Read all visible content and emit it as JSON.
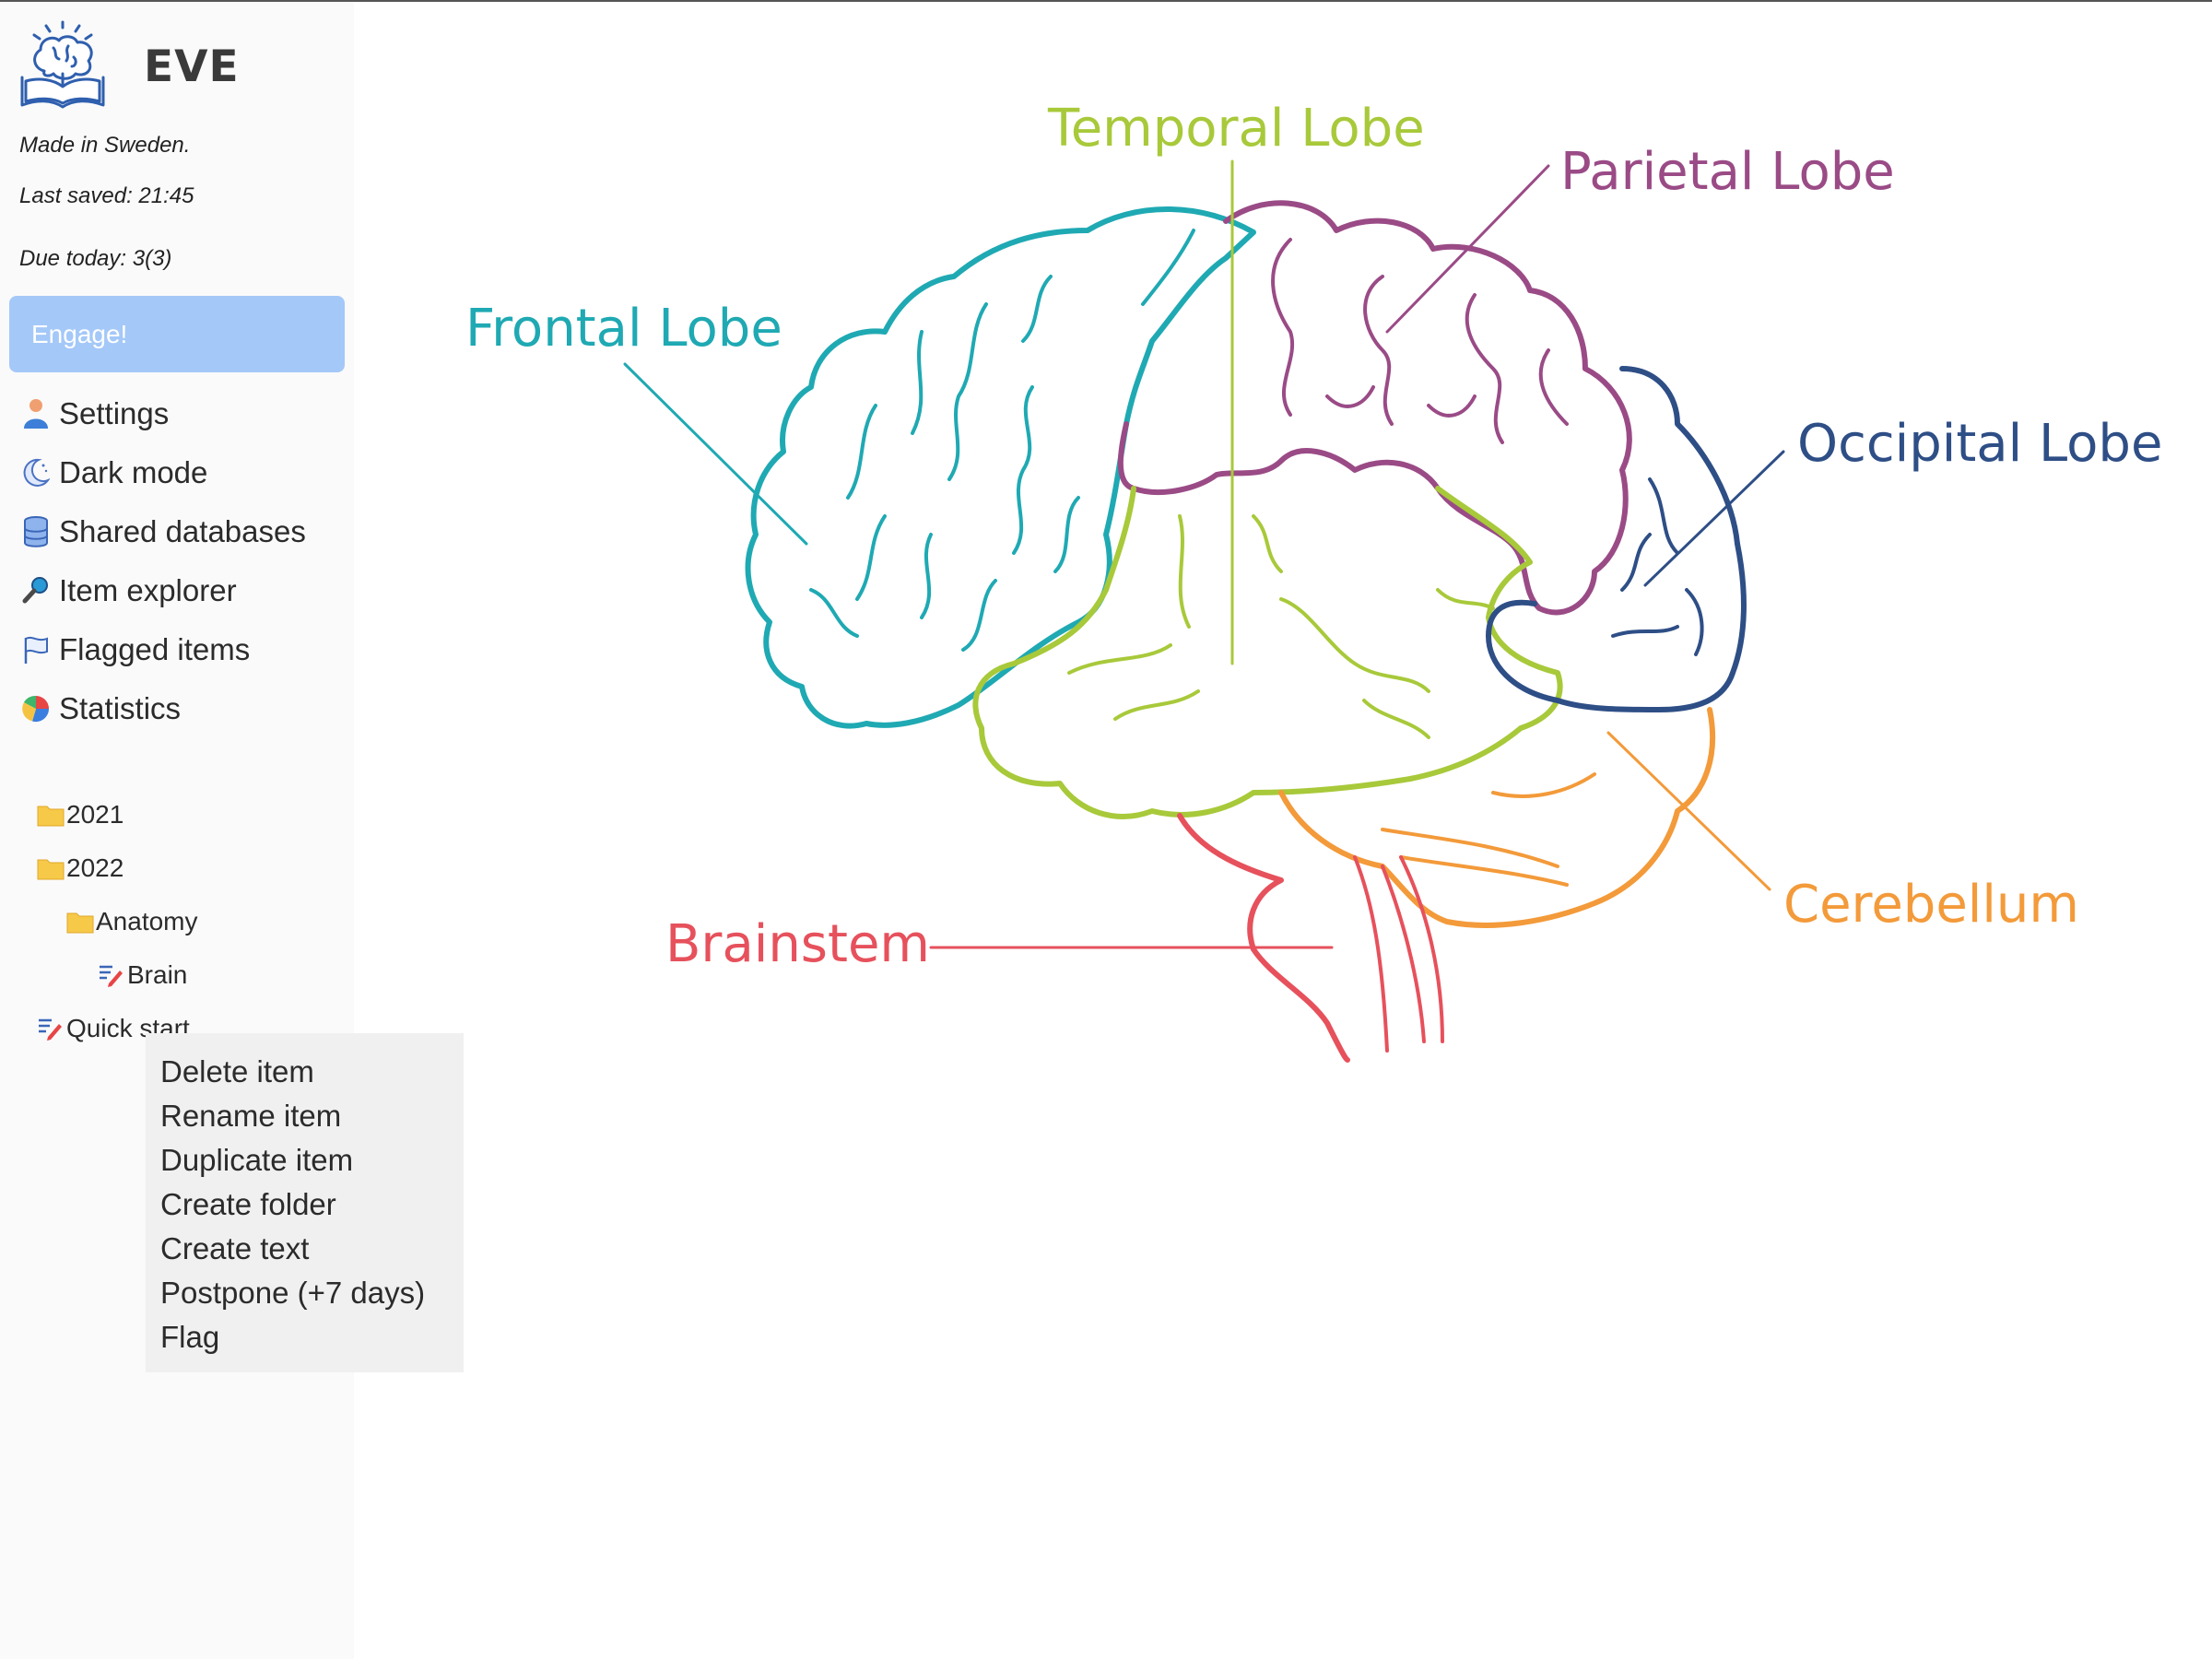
{
  "app": {
    "title": "EVE",
    "made_in": "Made in Sweden.",
    "last_saved": "Last saved: 21:45",
    "due_today": "Due today: 3(3)"
  },
  "engage_button": {
    "label": "Engage!"
  },
  "menu": [
    {
      "label": "Settings",
      "icon": "person-icon"
    },
    {
      "label": "Dark mode",
      "icon": "moon-icon"
    },
    {
      "label": "Shared databases",
      "icon": "database-icon"
    },
    {
      "label": "Item explorer",
      "icon": "magnifier-icon"
    },
    {
      "label": "Flagged items",
      "icon": "flag-icon"
    },
    {
      "label": "Statistics",
      "icon": "pie-chart-icon"
    }
  ],
  "tree": [
    {
      "label": "2021",
      "type": "folder"
    },
    {
      "label": "2022",
      "type": "folder"
    },
    {
      "label": "Anatomy",
      "type": "folder"
    },
    {
      "label": "Brain",
      "type": "text"
    },
    {
      "label": "Quick start",
      "type": "text"
    }
  ],
  "context_menu": [
    "Delete item",
    "Rename item",
    "Duplicate item",
    "Create folder",
    "Create text",
    "Postpone (+7 days)",
    "Flag"
  ],
  "diagram": {
    "labels": {
      "temporal": "Temporal Lobe",
      "parietal": "Parietal Lobe",
      "frontal": "Frontal Lobe",
      "occipital": "Occipital Lobe",
      "cerebellum": "Cerebellum",
      "brainstem": "Brainstem"
    },
    "colors": {
      "frontal": "#1fa9b3",
      "temporal": "#a8c93a",
      "parietal": "#9a4b86",
      "occipital": "#2e4e86",
      "cerebellum": "#f39a3a",
      "brainstem": "#e6515c",
      "accent": "#a4c8f8",
      "folder": "#f7c948"
    }
  }
}
